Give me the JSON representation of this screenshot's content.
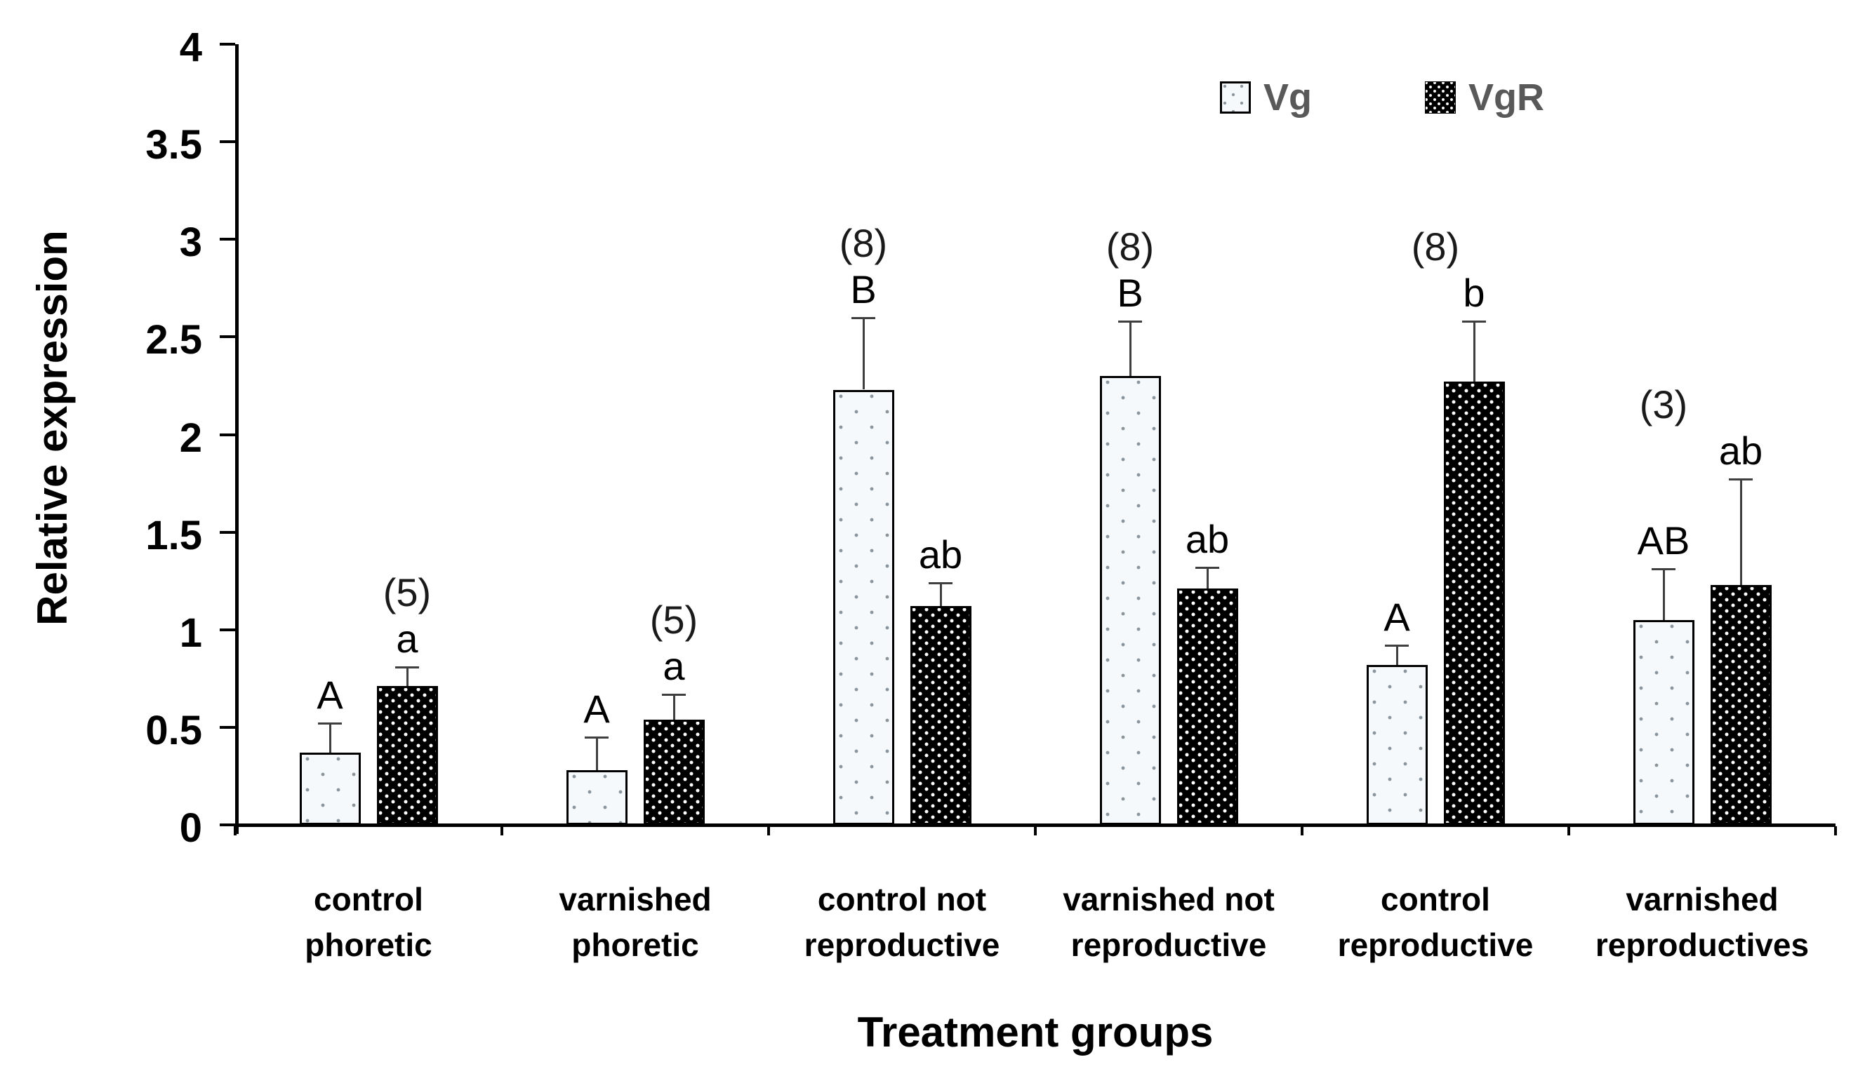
{
  "chart_data": {
    "type": "bar",
    "title": "",
    "xlabel": "Treatment groups",
    "ylabel": "Relative expression",
    "ylim": [
      0,
      4
    ],
    "ytick_step": 0.5,
    "ytick_labels": [
      "0",
      "0.5",
      "1",
      "1.5",
      "2",
      "2.5",
      "3",
      "3.5",
      "4"
    ],
    "grid": "off",
    "legend_position": "top-right",
    "categories": [
      "control\nphoretic",
      "varnished\nphoretic",
      "control  not\nreproductive",
      "varnished not\nreproductive",
      "control\nreproductive",
      "varnished\nreproductives"
    ],
    "series": [
      {
        "name": "Vg",
        "values": [
          0.37,
          0.28,
          2.23,
          2.3,
          0.82,
          1.05
        ],
        "errors_upper": [
          0.15,
          0.17,
          0.37,
          0.28,
          0.1,
          0.26
        ],
        "sig_letters": [
          "A",
          "A",
          "B",
          "B",
          "A",
          "AB"
        ]
      },
      {
        "name": "VgR",
        "values": [
          0.71,
          0.54,
          1.12,
          1.21,
          2.27,
          1.23
        ],
        "errors_upper": [
          0.1,
          0.13,
          0.12,
          0.11,
          0.31,
          0.54
        ],
        "sig_letters": [
          "a",
          "a",
          "ab",
          "ab",
          "b",
          "ab"
        ]
      }
    ],
    "sample_sizes": [
      "(5)",
      "(5)",
      "(8)",
      "(8)",
      "(8)",
      "(3)"
    ],
    "sample_size_over": [
      "vgr",
      "vgr",
      "vg",
      "vg",
      "center",
      "vg"
    ],
    "colors": {
      "axis": "#000000",
      "error_bar": "#3f3f3f",
      "legend_text": "#595959",
      "vg_fill": "#f5f9fb",
      "vg_dot": "#8a949c",
      "vgr_fill": "#000000",
      "vgr_dot": "#ffffff"
    }
  }
}
